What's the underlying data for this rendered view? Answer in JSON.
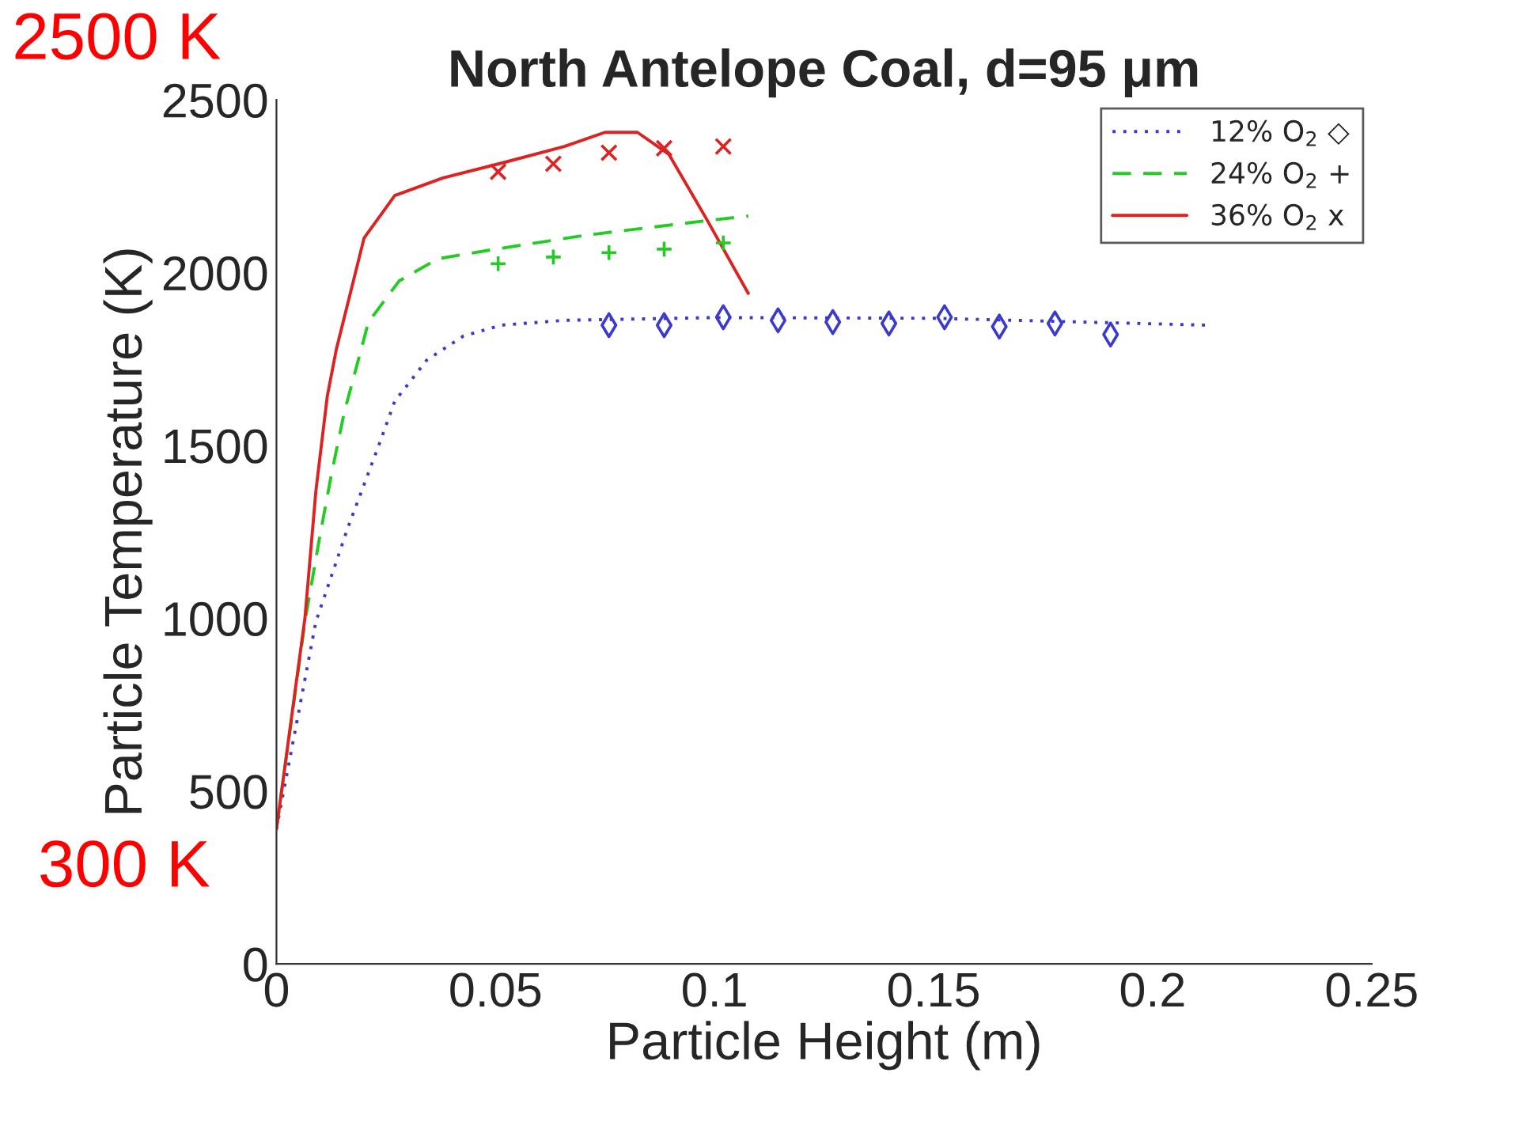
{
  "chart_data": {
    "type": "line",
    "title": "North Antelope Coal, d=95 μm",
    "xlabel": "Particle Height (m)",
    "ylabel": "Particle Temperature (K)",
    "xlim": [
      0,
      0.25
    ],
    "xticks": [
      0,
      0.05,
      0.1,
      0.15,
      0.2,
      0.25
    ],
    "ylim": [
      0,
      2500
    ],
    "yticks": [
      0,
      500,
      1000,
      1500,
      2000,
      2500
    ],
    "legend": "top right",
    "annotations": [
      "2500 K",
      "300 K"
    ],
    "series": [
      {
        "name": "12% O$_{2}$ ◇",
        "color": "#3a3acc",
        "line_style": "dotted",
        "x": [
          0,
          0.009,
          0.0163,
          0.0235,
          0.027,
          0.0307,
          0.0343,
          0.0426,
          0.0513,
          0.0657,
          0.1,
          0.15,
          0.2124
        ],
        "values": [
          390,
          990,
          1262,
          1505,
          1628,
          1688,
          1747,
          1816,
          1848,
          1862,
          1870,
          1868,
          1848
        ]
      },
      {
        "name": "24% O$_{2}$ +",
        "color": "#22cc22",
        "line_style": "dashed",
        "x": [
          0,
          0.0065,
          0.0098,
          0.0126,
          0.0155,
          0.021,
          0.028,
          0.0368,
          0.05,
          0.0704,
          0.0946,
          0.1077
        ],
        "values": [
          390,
          990,
          1230,
          1420,
          1597,
          1857,
          1976,
          2040,
          2068,
          2108,
          2145,
          2164
        ]
      },
      {
        "name": "36% O$_{2}$ x",
        "color": "#dd2222",
        "line_style": "solid",
        "x": [
          0,
          0.0065,
          0.009,
          0.0116,
          0.0137,
          0.02,
          0.027,
          0.038,
          0.052,
          0.0657,
          0.075,
          0.0824,
          0.0896,
          0.098,
          0.1077
        ],
        "values": [
          390,
          1000,
          1368,
          1642,
          1780,
          2100,
          2223,
          2274,
          2319,
          2365,
          2406,
          2406,
          2342,
          2159,
          1940
        ]
      },
      {
        "type": "scatter",
        "color": "#3a3acc",
        "marker": "diamond",
        "x": [
          0.0759,
          0.0885,
          0.102,
          0.1145,
          0.127,
          0.1398,
          0.1525,
          0.165,
          0.1777,
          0.1904
        ],
        "values": [
          1848,
          1848,
          1871,
          1862,
          1857,
          1853,
          1871,
          1844,
          1853,
          1821
        ]
      },
      {
        "type": "scatter",
        "color": "#22cc22",
        "marker": "plus",
        "x": [
          0.0506,
          0.0632,
          0.0759,
          0.0885,
          0.102
        ],
        "values": [
          2026,
          2045,
          2058,
          2068,
          2086
        ]
      },
      {
        "type": "scatter",
        "color": "#dd2222",
        "marker": "cross",
        "x": [
          0.0506,
          0.0632,
          0.0759,
          0.0885,
          0.102
        ],
        "values": [
          2292,
          2315,
          2347,
          2360,
          2365
        ]
      }
    ]
  }
}
